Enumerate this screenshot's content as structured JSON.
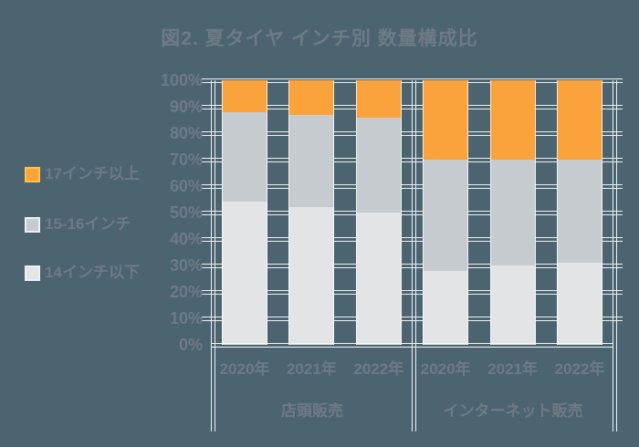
{
  "title": "図2. 夏タイヤ インチ別 数量構成比",
  "legend": [
    {
      "label": "17インチ以上",
      "color": "#FAA33C",
      "border": "#FFC14A"
    },
    {
      "label": "15-16インチ",
      "color": "#C6CBCF",
      "border": "#EDF0F2"
    },
    {
      "label": "14インチ以下",
      "color": "#E2E4E6",
      "border": "#EDF0F2"
    }
  ],
  "chart_data": {
    "type": "bar",
    "subtype": "stacked-100-percent",
    "title": "図2. 夏タイヤ インチ別 数量構成比",
    "groups": [
      {
        "label": "店頭販売",
        "categories": [
          "2020年",
          "2021年",
          "2022年"
        ]
      },
      {
        "label": "インターネット販売",
        "categories": [
          "2020年",
          "2021年",
          "2022年"
        ]
      }
    ],
    "categories": [
      "2020年",
      "2021年",
      "2022年",
      "2020年",
      "2021年",
      "2022年"
    ],
    "series": [
      {
        "name": "14インチ以下",
        "color": "#E2E4E6",
        "values": [
          54,
          52,
          50,
          28,
          30,
          31
        ]
      },
      {
        "name": "15-16インチ",
        "color": "#C6CBCF",
        "values": [
          34,
          35,
          36,
          42,
          40,
          39
        ]
      },
      {
        "name": "17インチ以上",
        "color": "#FAA33C",
        "values": [
          12,
          13,
          14,
          30,
          30,
          30
        ]
      }
    ],
    "y_ticks": [
      "100%",
      "90%",
      "80%",
      "70%",
      "60%",
      "50%",
      "40%",
      "30%",
      "20%",
      "10%",
      "0%"
    ],
    "ylim": [
      0,
      100
    ],
    "grid": true,
    "legend_position": "left",
    "xlabel": "",
    "ylabel": ""
  },
  "colors": {
    "background": "#4C6470",
    "grid": "#ECF1F3",
    "frame": "#F3F7F9",
    "text": "#6E7A85"
  }
}
